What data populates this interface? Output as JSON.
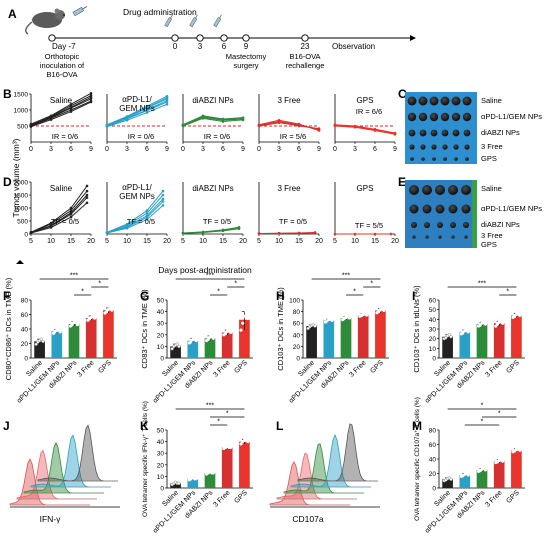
{
  "timeline": {
    "panel": "A",
    "title": "Drug administration",
    "days": [
      "Day -7",
      "0",
      "3",
      "6",
      "9",
      "23"
    ],
    "below": {
      "day-7": [
        "Orthotopic",
        "inoculation of",
        "B16-OVA"
      ],
      "d9": [
        "Mastectomy",
        "surgery"
      ],
      "d23": [
        "B16-OVA",
        "rechallenge"
      ]
    },
    "observation": "Observation"
  },
  "groups": [
    "Saline",
    "αPD-L1/GEM NPs",
    "diABZI NPs",
    "3 Free",
    "GPS"
  ],
  "colors": {
    "Saline": "#222222",
    "αPD-L1/GEM NPs": "#2aa0c7",
    "diABZI NPs": "#2e8b3a",
    "3 Free": "#d63030",
    "GPS": "#e8342a"
  },
  "shared": {
    "yaxis_BD": "Tumor volume (mm³)",
    "xaxis_D": "Days post-administration"
  },
  "photos": {
    "C": {
      "labels": [
        "Saline",
        "αPD-L1/GEM NPs",
        "diABZI NPs",
        "3 Free",
        "GPS"
      ]
    },
    "E": {
      "labels": [
        "Saline",
        "αPD-L1/GEM NPs",
        "diABZI NPs",
        "3 Free",
        "GPS"
      ]
    }
  },
  "flow": {
    "J": {
      "xlabel": "IFN-γ"
    },
    "L": {
      "xlabel": "CD107a"
    }
  },
  "chart_data": [
    {
      "panel": "B",
      "type": "line",
      "xlim": [
        0,
        9
      ],
      "ylim": [
        0,
        1500
      ],
      "xticks": [
        0,
        3,
        6,
        9
      ],
      "yticks": [
        500,
        1000,
        1500
      ],
      "threshold": 500,
      "subplots": [
        {
          "title": "Saline",
          "annotation": "IR = 0/6",
          "x": [
            0,
            3,
            6,
            9
          ],
          "series": [
            [
              520,
              800,
              1130,
              1450
            ],
            [
              540,
              760,
              1060,
              1350
            ],
            [
              500,
              740,
              1000,
              1280
            ],
            [
              560,
              820,
              1180,
              1520
            ],
            [
              520,
              780,
              1080,
              1400
            ],
            [
              480,
              700,
              950,
              1250
            ]
          ]
        },
        {
          "title": "αPD-L1/ GEM NPs",
          "annotation": "IR = 0/6",
          "x": [
            0,
            3,
            6,
            9
          ],
          "series": [
            [
              520,
              760,
              1060,
              1350
            ],
            [
              500,
              720,
              980,
              1250
            ],
            [
              540,
              800,
              1120,
              1430
            ],
            [
              480,
              680,
              920,
              1180
            ],
            [
              510,
              740,
              1000,
              1300
            ],
            [
              530,
              780,
              1080,
              1380
            ]
          ]
        },
        {
          "title": "diABZI NPs",
          "annotation": "IR = 0/6",
          "x": [
            0,
            3,
            6,
            9
          ],
          "series": [
            [
              520,
              760,
              680,
              720
            ],
            [
              540,
              820,
              720,
              760
            ],
            [
              500,
              740,
              640,
              690
            ],
            [
              530,
              790,
              700,
              740
            ]
          ]
        },
        {
          "title": "3 Free",
          "annotation": "IR = 5/6",
          "x": [
            0,
            3,
            6,
            9
          ],
          "series": [
            [
              520,
              640,
              540,
              380
            ],
            [
              500,
              600,
              520,
              400
            ],
            [
              540,
              680,
              560,
              360
            ],
            [
              510,
              620,
              500,
              420
            ]
          ]
        },
        {
          "title": "GPS",
          "annotation": "IR = 6/6",
          "x": [
            0,
            3,
            6,
            9
          ],
          "series": [
            [
              520,
              480,
              380,
              260
            ],
            [
              500,
              460,
              360,
              240
            ],
            [
              540,
              500,
              400,
              280
            ],
            [
              510,
              470,
              370,
              250
            ]
          ]
        }
      ]
    },
    {
      "panel": "D",
      "type": "line",
      "xlim": [
        5,
        20
      ],
      "ylim": [
        0,
        2000
      ],
      "xticks": [
        5,
        10,
        15,
        20
      ],
      "yticks": [
        0,
        500,
        1000,
        1500,
        2000
      ],
      "subplots": [
        {
          "title": "Saline",
          "annotation": "TF = 0/5",
          "x": [
            5,
            10,
            15,
            19
          ],
          "series": [
            [
              60,
              380,
              900,
              1650
            ],
            [
              50,
              300,
              760,
              1400
            ],
            [
              40,
              250,
              650,
              1200
            ],
            [
              70,
              420,
              1000,
              1850
            ],
            [
              55,
              320,
              820,
              1500
            ]
          ]
        },
        {
          "title": "αPD-L1/ GEM NPs",
          "annotation": "TF = 0/5",
          "x": [
            5,
            10,
            15,
            19
          ],
          "series": [
            [
              60,
              340,
              800,
              1500
            ],
            [
              45,
              260,
              640,
              1250
            ],
            [
              40,
              220,
              560,
              1100
            ],
            [
              65,
              380,
              900,
              1650
            ],
            [
              50,
              300,
              700,
              1350
            ]
          ]
        },
        {
          "title": "diABZI NPs",
          "annotation": "TF = 0/5",
          "x": [
            5,
            10,
            15,
            19
          ],
          "series": [
            [
              40,
              80,
              160,
              260
            ],
            [
              30,
              60,
              120,
              200
            ],
            [
              35,
              70,
              140,
              240
            ]
          ]
        },
        {
          "title": "3 Free",
          "annotation": "TF = 0/5",
          "x": [
            5,
            10,
            15,
            19
          ],
          "series": [
            [
              20,
              30,
              40,
              60
            ],
            [
              15,
              25,
              35,
              50
            ]
          ]
        },
        {
          "title": "GPS",
          "annotation": "TF = 5/5",
          "x": [
            5,
            10,
            15,
            19
          ],
          "series": [
            [
              0,
              0,
              0,
              0
            ]
          ]
        }
      ]
    },
    {
      "panel": "F",
      "type": "bar",
      "ylabel": "CD80⁺CD86⁺ DCs in TME (%)",
      "ylim": [
        0,
        80
      ],
      "yticks": [
        0,
        20,
        40,
        60,
        80
      ],
      "categories": [
        "Saline",
        "αPD-L1/GEM NPs",
        "diABZI NPs",
        "3 Free",
        "GPS"
      ],
      "values": [
        23,
        37,
        47,
        55,
        66
      ],
      "points": [
        [
          19,
          22,
          24,
          26,
          23
        ],
        [
          34,
          36,
          38,
          39,
          36
        ],
        [
          44,
          46,
          49,
          50,
          46
        ],
        [
          52,
          54,
          56,
          58,
          55
        ],
        [
          62,
          64,
          67,
          69,
          66
        ]
      ],
      "sig": [
        {
          "from": 0,
          "to": 4,
          "label": "***"
        },
        {
          "from": 3,
          "to": 4,
          "label": "*"
        },
        {
          "from": 2,
          "to": 3,
          "label": "*"
        }
      ]
    },
    {
      "panel": "G",
      "type": "bar",
      "ylabel": "CD83⁺ DCs in TME (%)",
      "ylim": [
        0,
        50
      ],
      "yticks": [
        0,
        10,
        20,
        30,
        40,
        50
      ],
      "categories": [
        "Saline",
        "αPD-L1/GEM NPs",
        "diABZI NPs",
        "3 Free",
        "GPS"
      ],
      "values": [
        10,
        15,
        17,
        22,
        33
      ],
      "points": [
        [
          8,
          10,
          11,
          12,
          10
        ],
        [
          13,
          14,
          16,
          17,
          15
        ],
        [
          15,
          16,
          18,
          19,
          17
        ],
        [
          20,
          21,
          23,
          24,
          22
        ],
        [
          24,
          30,
          36,
          40,
          34
        ]
      ],
      "sig": [
        {
          "from": 0,
          "to": 4,
          "label": "***"
        },
        {
          "from": 3,
          "to": 4,
          "label": "*"
        },
        {
          "from": 2,
          "to": 3,
          "label": "*"
        }
      ]
    },
    {
      "panel": "H",
      "type": "bar",
      "ylabel": "CD103⁺ DCs in TME (%)",
      "ylim": [
        0,
        100
      ],
      "yticks": [
        0,
        20,
        40,
        60,
        80,
        100
      ],
      "categories": [
        "Saline",
        "αPD-L1/GEM NPs",
        "diABZI NPs",
        "3 Free",
        "GPS"
      ],
      "values": [
        55,
        65,
        69,
        74,
        82
      ],
      "points": [
        [
          51,
          54,
          56,
          57,
          55
        ],
        [
          62,
          64,
          66,
          67,
          65
        ],
        [
          66,
          68,
          70,
          71,
          69
        ],
        [
          72,
          73,
          75,
          76,
          74
        ],
        [
          78,
          80,
          83,
          85,
          82
        ]
      ],
      "sig": [
        {
          "from": 0,
          "to": 4,
          "label": "***"
        },
        {
          "from": 3,
          "to": 4,
          "label": "*"
        },
        {
          "from": 2,
          "to": 3,
          "label": "*"
        }
      ]
    },
    {
      "panel": "I",
      "type": "bar",
      "ylabel": "CD103⁺ DCs in tdLNs (%)",
      "ylim": [
        0,
        60
      ],
      "yticks": [
        0,
        10,
        20,
        30,
        40,
        50,
        60
      ],
      "categories": [
        "Saline",
        "αPD-L1/GEM NPs",
        "diABZI NPs",
        "3 Free",
        "GPS"
      ],
      "values": [
        22,
        27,
        35,
        36,
        44
      ],
      "points": [
        [
          20,
          21,
          23,
          24,
          22
        ],
        [
          25,
          26,
          28,
          29,
          27
        ],
        [
          33,
          34,
          36,
          37,
          35
        ],
        [
          33,
          35,
          37,
          38,
          36
        ],
        [
          42,
          43,
          45,
          46,
          44
        ]
      ],
      "sig": [
        {
          "from": 0,
          "to": 4,
          "label": "***"
        },
        {
          "from": 3,
          "to": 4,
          "label": "*"
        }
      ]
    },
    {
      "panel": "K",
      "type": "bar",
      "ylabel": "OVA tetramer specific IFN-γ⁺ T cells (%)",
      "ylim": [
        0,
        50
      ],
      "yticks": [
        0,
        10,
        20,
        30,
        40,
        50
      ],
      "categories": [
        "Saline",
        "αPD-L1/GEM NPs",
        "diABZI NPs",
        "3 Free",
        "GPS"
      ],
      "values": [
        4,
        8,
        13,
        35,
        40
      ],
      "points": [
        [
          3,
          4,
          5,
          4,
          4
        ],
        [
          7,
          8,
          9,
          8,
          8
        ],
        [
          12,
          13,
          14,
          13,
          13
        ],
        [
          34,
          35,
          36,
          35,
          35
        ],
        [
          38,
          40,
          41,
          42,
          40
        ]
      ],
      "sig": [
        {
          "from": 0,
          "to": 4,
          "label": "***"
        },
        {
          "from": 2,
          "to": 4,
          "label": "*"
        },
        {
          "from": 2,
          "to": 3,
          "label": "*"
        }
      ]
    },
    {
      "panel": "M",
      "type": "bar",
      "ylabel": "OVA tetramer specific CD107a⁺ T cells (%)",
      "ylim": [
        0,
        80
      ],
      "yticks": [
        0,
        20,
        40,
        60,
        80
      ],
      "categories": [
        "Saline",
        "αPD-L1/GEM NPs",
        "diABZI NPs",
        "3 Free",
        "GPS"
      ],
      "values": [
        12,
        18,
        25,
        37,
        52
      ],
      "points": [
        [
          10,
          11,
          13,
          14,
          12
        ],
        [
          16,
          17,
          19,
          20,
          18
        ],
        [
          23,
          24,
          26,
          27,
          25
        ],
        [
          35,
          36,
          38,
          39,
          37
        ],
        [
          50,
          51,
          53,
          54,
          52
        ]
      ],
      "sig": [
        {
          "from": 0,
          "to": 4,
          "label": "*"
        },
        {
          "from": 2,
          "to": 4,
          "label": "*"
        },
        {
          "from": 1,
          "to": 3,
          "label": "*"
        }
      ]
    }
  ]
}
